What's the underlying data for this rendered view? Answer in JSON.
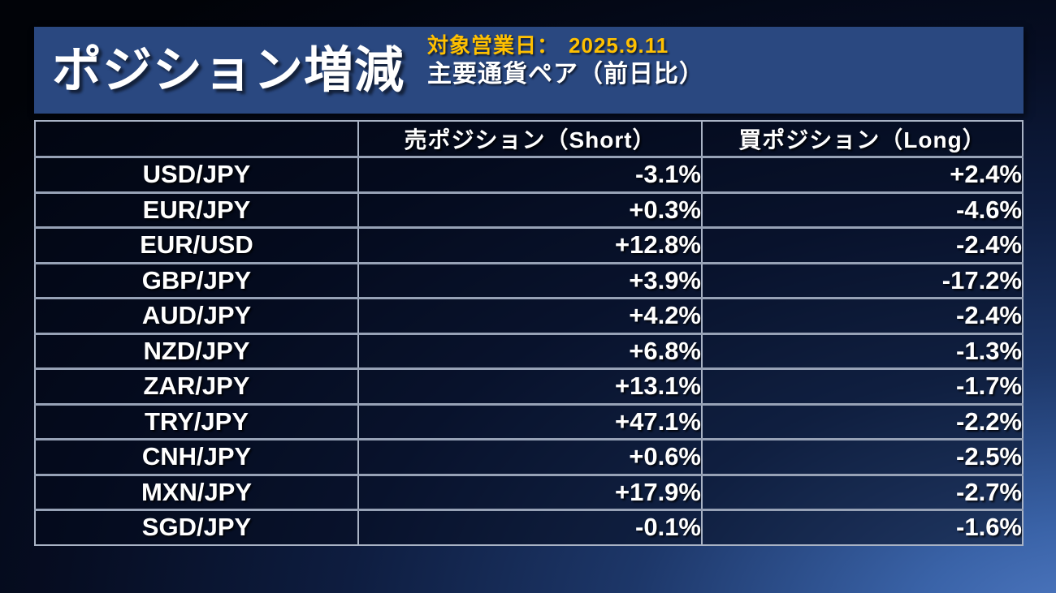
{
  "slide": {
    "title": "ポジション増減",
    "business_date_label": "対象営業日：",
    "business_date_value": "2025.9.11",
    "subtitle": "主要通貨ペア（前日比）"
  },
  "colors": {
    "background_dark": "#02050e",
    "background_light": "#4f79c2",
    "title_box_blue": "#2a4880",
    "accent_yellow": "#ffc000",
    "table_border": "#a9b3c5",
    "text_white": "#ffffff"
  },
  "chart_data": {
    "type": "table",
    "title": "ポジション増減",
    "subtitle": "主要通貨ペア（前日比）",
    "business_date": "2025.9.11",
    "columns": [
      "",
      "売ポジション（Short）",
      "買ポジション（Long）"
    ],
    "rows": [
      {
        "pair": "USD/JPY",
        "short": "-3.1%",
        "long": "+2.4%"
      },
      {
        "pair": "EUR/JPY",
        "short": "+0.3%",
        "long": "-4.6%"
      },
      {
        "pair": "EUR/USD",
        "short": "+12.8%",
        "long": "-2.4%"
      },
      {
        "pair": "GBP/JPY",
        "short": "+3.9%",
        "long": "-17.2%"
      },
      {
        "pair": "AUD/JPY",
        "short": "+4.2%",
        "long": "-2.4%"
      },
      {
        "pair": "NZD/JPY",
        "short": "+6.8%",
        "long": "-1.3%"
      },
      {
        "pair": "ZAR/JPY",
        "short": "+13.1%",
        "long": "-1.7%"
      },
      {
        "pair": "TRY/JPY",
        "short": "+47.1%",
        "long": "-2.2%"
      },
      {
        "pair": "CNH/JPY",
        "short": "+0.6%",
        "long": "-2.5%"
      },
      {
        "pair": "MXN/JPY",
        "short": "+17.9%",
        "long": "-2.7%"
      },
      {
        "pair": "SGD/JPY",
        "short": "-0.1%",
        "long": "-1.6%"
      }
    ]
  }
}
